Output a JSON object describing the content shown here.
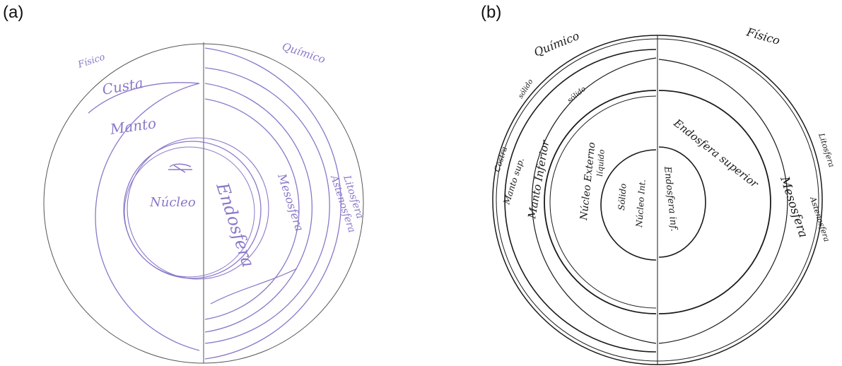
{
  "panels": [
    {
      "label": "(a)",
      "left_header": "Físico",
      "right_header": "Químico",
      "left_labels": [
        "Custa",
        "Manto",
        "Núcleo"
      ],
      "right_labels": [
        "Litosfera",
        "Astenosfera",
        "Mesosfera",
        "Endosfera"
      ],
      "ink_color": "#8a78c8"
    },
    {
      "label": "(b)",
      "left_header": "Químico",
      "right_header": "Físico",
      "left_labels": [
        "Costra",
        "Manto sup.",
        "Manto Inferior",
        "Núcleo Externo",
        "líquido",
        "Núcleo Int.",
        "Sólido",
        "sólido",
        "sólido"
      ],
      "right_labels": [
        "Litosfera",
        "Astenosfera",
        "Mesosfera",
        "Endosfera superior",
        "Endosfera inf."
      ],
      "ink_color": "#1a1a1a"
    }
  ]
}
